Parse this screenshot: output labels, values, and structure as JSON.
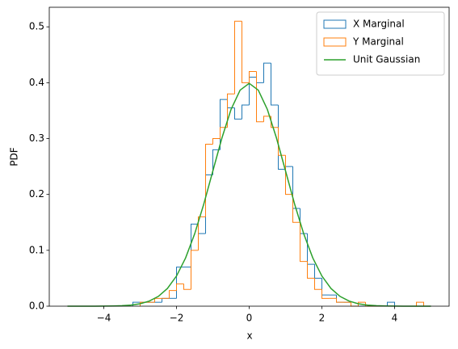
{
  "chart_data": {
    "type": "histogram",
    "xlabel": "x",
    "ylabel": "PDF",
    "xlim": [
      -5.5,
      5.5
    ],
    "ylim": [
      0,
      0.535
    ],
    "xticks": [
      {
        "value": -4,
        "label": "−4"
      },
      {
        "value": -2,
        "label": "−2"
      },
      0,
      2,
      4
    ],
    "yticks": [
      {
        "value": 0,
        "label": "0.0"
      },
      0.1,
      0.2,
      0.3,
      0.4,
      0.5
    ],
    "legend": "upper right",
    "series": [
      {
        "name": "X Marginal",
        "color": "#1f77b4",
        "kind": "step",
        "bins": [
          -3.2,
          -3.0,
          -2.8,
          -2.6,
          -2.4,
          -2.2,
          -2.0,
          -1.8,
          -1.6,
          -1.4,
          -1.2,
          -1.0,
          -0.8,
          -0.6,
          -0.4,
          -0.2,
          0.0,
          0.2,
          0.4,
          0.6,
          0.8,
          1.0,
          1.2,
          1.4,
          1.6,
          1.8,
          2.0,
          2.2,
          2.4,
          2.6,
          2.8,
          3.0,
          3.2,
          3.4,
          3.6,
          3.8,
          4.0
        ],
        "values": [
          0.007,
          0.007,
          0.007,
          0.007,
          0.014,
          0.014,
          0.07,
          0.07,
          0.147,
          0.13,
          0.235,
          0.28,
          0.37,
          0.355,
          0.335,
          0.36,
          0.41,
          0.4,
          0.435,
          0.36,
          0.245,
          0.25,
          0.175,
          0.13,
          0.075,
          0.05,
          0.02,
          0.02,
          0.007,
          0.007,
          0,
          0,
          0,
          0,
          0,
          0.007
        ]
      },
      {
        "name": "Y Marginal",
        "color": "#ff7f0e",
        "kind": "step",
        "bins": [
          -3.0,
          -2.8,
          -2.6,
          -2.4,
          -2.2,
          -2.0,
          -1.8,
          -1.6,
          -1.4,
          -1.2,
          -1.0,
          -0.8,
          -0.6,
          -0.4,
          -0.2,
          0.0,
          0.2,
          0.4,
          0.6,
          0.8,
          1.0,
          1.2,
          1.4,
          1.6,
          1.8,
          2.0,
          2.2,
          2.4,
          2.6,
          2.8,
          3.0,
          3.2,
          3.4,
          3.6,
          3.8,
          4.0,
          4.2,
          4.4,
          4.6,
          4.8
        ],
        "values": [
          0.007,
          0.007,
          0.014,
          0.014,
          0.028,
          0.04,
          0.03,
          0.1,
          0.16,
          0.29,
          0.3,
          0.32,
          0.38,
          0.51,
          0.4,
          0.42,
          0.33,
          0.34,
          0.32,
          0.27,
          0.2,
          0.15,
          0.08,
          0.05,
          0.03,
          0.014,
          0.014,
          0.007,
          0.007,
          0,
          0.007,
          0,
          0,
          0,
          0,
          0,
          0,
          0,
          0.007
        ]
      },
      {
        "name": "Unit Gaussian",
        "color": "#2ca02c",
        "kind": "line",
        "x": [
          -5,
          -4.75,
          -4.5,
          -4.25,
          -4,
          -3.75,
          -3.5,
          -3.25,
          -3,
          -2.75,
          -2.5,
          -2.25,
          -2,
          -1.75,
          -1.5,
          -1.25,
          -1,
          -0.75,
          -0.5,
          -0.25,
          0,
          0.25,
          0.5,
          0.75,
          1,
          1.25,
          1.5,
          1.75,
          2,
          2.25,
          2.5,
          2.75,
          3,
          3.25,
          3.5,
          3.75,
          4,
          4.25,
          4.5,
          4.75,
          5
        ],
        "values": [
          0,
          0,
          0,
          0,
          0.0001,
          0.0004,
          0.0009,
          0.002,
          0.0044,
          0.0091,
          0.0175,
          0.0317,
          0.054,
          0.0863,
          0.1295,
          0.1826,
          0.242,
          0.3011,
          0.3521,
          0.3867,
          0.3989,
          0.3867,
          0.3521,
          0.3011,
          0.242,
          0.1826,
          0.1295,
          0.0863,
          0.054,
          0.0317,
          0.0175,
          0.0091,
          0.0044,
          0.002,
          0.0009,
          0.0004,
          0.0001,
          0,
          0,
          0,
          0
        ]
      }
    ]
  }
}
